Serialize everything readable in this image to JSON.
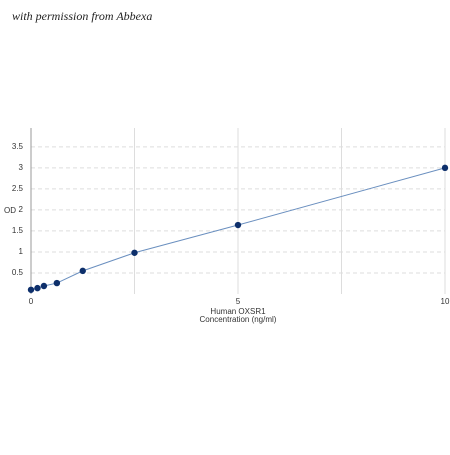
{
  "watermark": "with permission from Abbexa",
  "chart_data": {
    "type": "scatter",
    "x_label_lines": [
      "Human OXSR1",
      "Concentration (ng/ml)"
    ],
    "y_label": "OD",
    "x": [
      0,
      0.156,
      0.312,
      0.625,
      1.25,
      2.5,
      5,
      10
    ],
    "series": [
      {
        "color": "#0d2f6b",
        "values": [
          0.1,
          0.14,
          0.19,
          0.26,
          0.55,
          0.98,
          1.64,
          3.0
        ]
      }
    ],
    "line_color": "#6a8fbf",
    "xlim": [
      0,
      10
    ],
    "ylim": [
      0,
      3.9
    ],
    "xticks": [
      0,
      5,
      10
    ],
    "x_minor_grid": [
      2.5,
      7.5
    ],
    "yticks": [
      0.5,
      1,
      1.5,
      2,
      2.5,
      3,
      3.5
    ],
    "grid": true
  }
}
